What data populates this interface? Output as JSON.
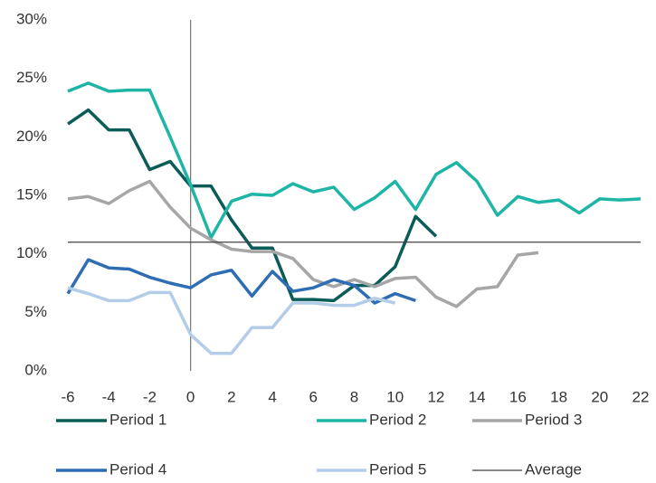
{
  "chart_data": {
    "type": "line",
    "x": [
      -6,
      -5,
      -4,
      -3,
      -2,
      -1,
      0,
      1,
      2,
      3,
      4,
      5,
      6,
      7,
      8,
      9,
      10,
      11,
      12,
      13,
      14,
      15,
      16,
      17,
      18,
      19,
      20,
      21,
      22
    ],
    "xlim": [
      -6,
      22
    ],
    "xticks": [
      -6,
      -4,
      -2,
      0,
      2,
      4,
      6,
      8,
      10,
      12,
      14,
      16,
      18,
      20,
      22
    ],
    "ylim": [
      0,
      30
    ],
    "yticks": [
      {
        "value": 0,
        "label": "0%"
      },
      {
        "value": 5,
        "label": "5%"
      },
      {
        "value": 10,
        "label": "10%"
      },
      {
        "value": 15,
        "label": "15%"
      },
      {
        "value": 20,
        "label": "20%"
      },
      {
        "value": 25,
        "label": "25%"
      },
      {
        "value": 30,
        "label": "30%"
      }
    ],
    "zero_line_color": "#7f7f7f",
    "series": [
      {
        "name": "Period 1",
        "color": "#0b5c57",
        "values": [
          21.1,
          22.3,
          20.6,
          20.6,
          17.2,
          17.9,
          15.8,
          15.8,
          12.9,
          10.5,
          10.5,
          6.1,
          6.1,
          6.0,
          7.3,
          7.3,
          8.9,
          13.2,
          11.5,
          null,
          null,
          null,
          null,
          null,
          null,
          null,
          null,
          null,
          null
        ]
      },
      {
        "name": "Period 2",
        "color": "#1fb5a6",
        "values": [
          23.9,
          24.6,
          23.9,
          24.0,
          24.0,
          20.0,
          15.9,
          11.4,
          14.5,
          15.1,
          15.0,
          16.0,
          15.3,
          15.7,
          13.8,
          14.8,
          16.2,
          13.8,
          16.8,
          17.8,
          16.2,
          13.3,
          14.9,
          14.4,
          14.6,
          13.5,
          14.7,
          14.6,
          14.7
        ]
      },
      {
        "name": "Period 3",
        "color": "#a6a6a6",
        "values": [
          14.7,
          14.9,
          14.3,
          15.4,
          16.2,
          14.0,
          12.2,
          11.2,
          10.4,
          10.2,
          10.2,
          9.6,
          7.8,
          7.2,
          7.8,
          7.2,
          7.9,
          8.0,
          6.3,
          5.5,
          7.0,
          7.2,
          9.9,
          10.1,
          null,
          null,
          null,
          null,
          null
        ]
      },
      {
        "name": "Period 4",
        "color": "#2e6db4",
        "values": [
          6.6,
          9.5,
          8.8,
          8.7,
          8.0,
          7.5,
          7.1,
          8.2,
          8.6,
          6.4,
          8.5,
          6.8,
          7.1,
          7.8,
          7.3,
          5.8,
          6.6,
          6.0,
          null,
          null,
          null,
          null,
          null,
          null,
          null,
          null,
          null,
          null,
          null
        ]
      },
      {
        "name": "Period 5",
        "color": "#b3cde8",
        "values": [
          7.1,
          6.6,
          6.0,
          6.0,
          6.7,
          6.7,
          3.1,
          1.5,
          1.5,
          3.7,
          3.7,
          5.8,
          5.8,
          5.6,
          5.6,
          6.2,
          5.8,
          null,
          null,
          null,
          null,
          null,
          null,
          null,
          null,
          null,
          null,
          null,
          null
        ]
      }
    ],
    "average": {
      "name": "Average",
      "value": 11,
      "color": "#404040"
    }
  }
}
